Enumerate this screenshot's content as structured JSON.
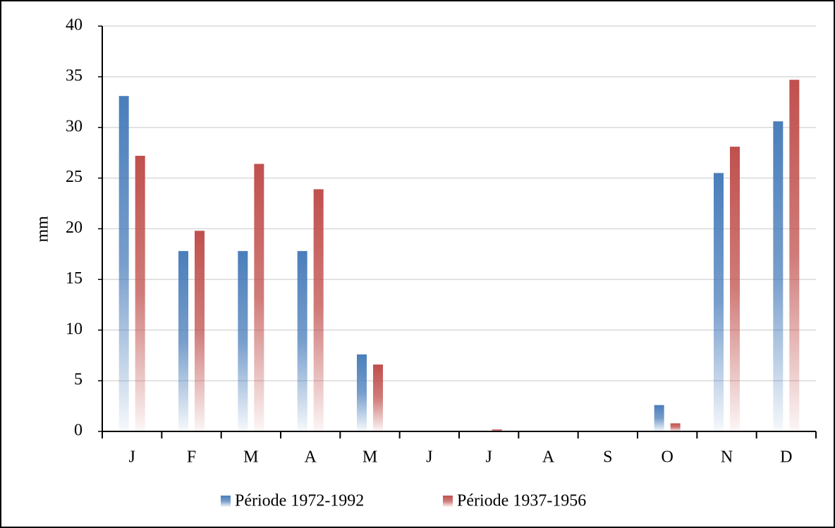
{
  "chart_data": {
    "type": "bar",
    "y_label": "mm",
    "categories": [
      "J",
      "F",
      "M",
      "A",
      "M",
      "J",
      "J",
      "A",
      "S",
      "O",
      "N",
      "D"
    ],
    "series": [
      {
        "name": "Période 1972-1992",
        "color": "#4a7ebb",
        "values": [
          33.1,
          17.8,
          17.8,
          17.8,
          7.6,
          0,
          0,
          0,
          0,
          2.6,
          25.5,
          30.6
        ]
      },
      {
        "name": "Période 1937-1956",
        "color": "#c0504d",
        "values": [
          27.2,
          19.8,
          26.4,
          23.9,
          6.6,
          0,
          0.2,
          0,
          0,
          0.8,
          28.1,
          34.7
        ]
      }
    ],
    "ylim": [
      0,
      40
    ],
    "yticks": [
      0,
      5,
      10,
      15,
      20,
      25,
      30,
      35,
      40
    ],
    "grid": true,
    "legend": "bottom"
  }
}
